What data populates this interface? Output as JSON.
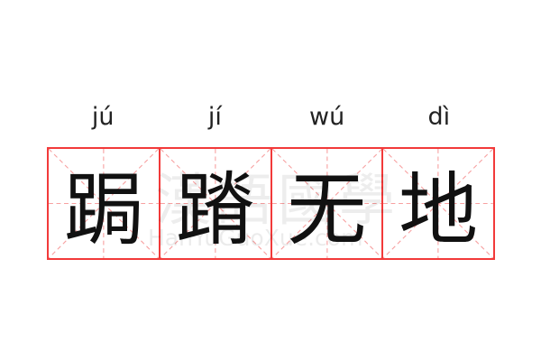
{
  "idiom": {
    "pinyin": [
      "jú",
      "jí",
      "wú",
      "dì"
    ],
    "characters": [
      "跼",
      "蹐",
      "无",
      "地"
    ]
  },
  "watermark": {
    "text": "漢語國學",
    "url_text": "HanYuGuoXue.com"
  },
  "colors": {
    "grid_border": "#f23a3a",
    "guide_lines": "#f7a0a0",
    "text": "#111111"
  }
}
